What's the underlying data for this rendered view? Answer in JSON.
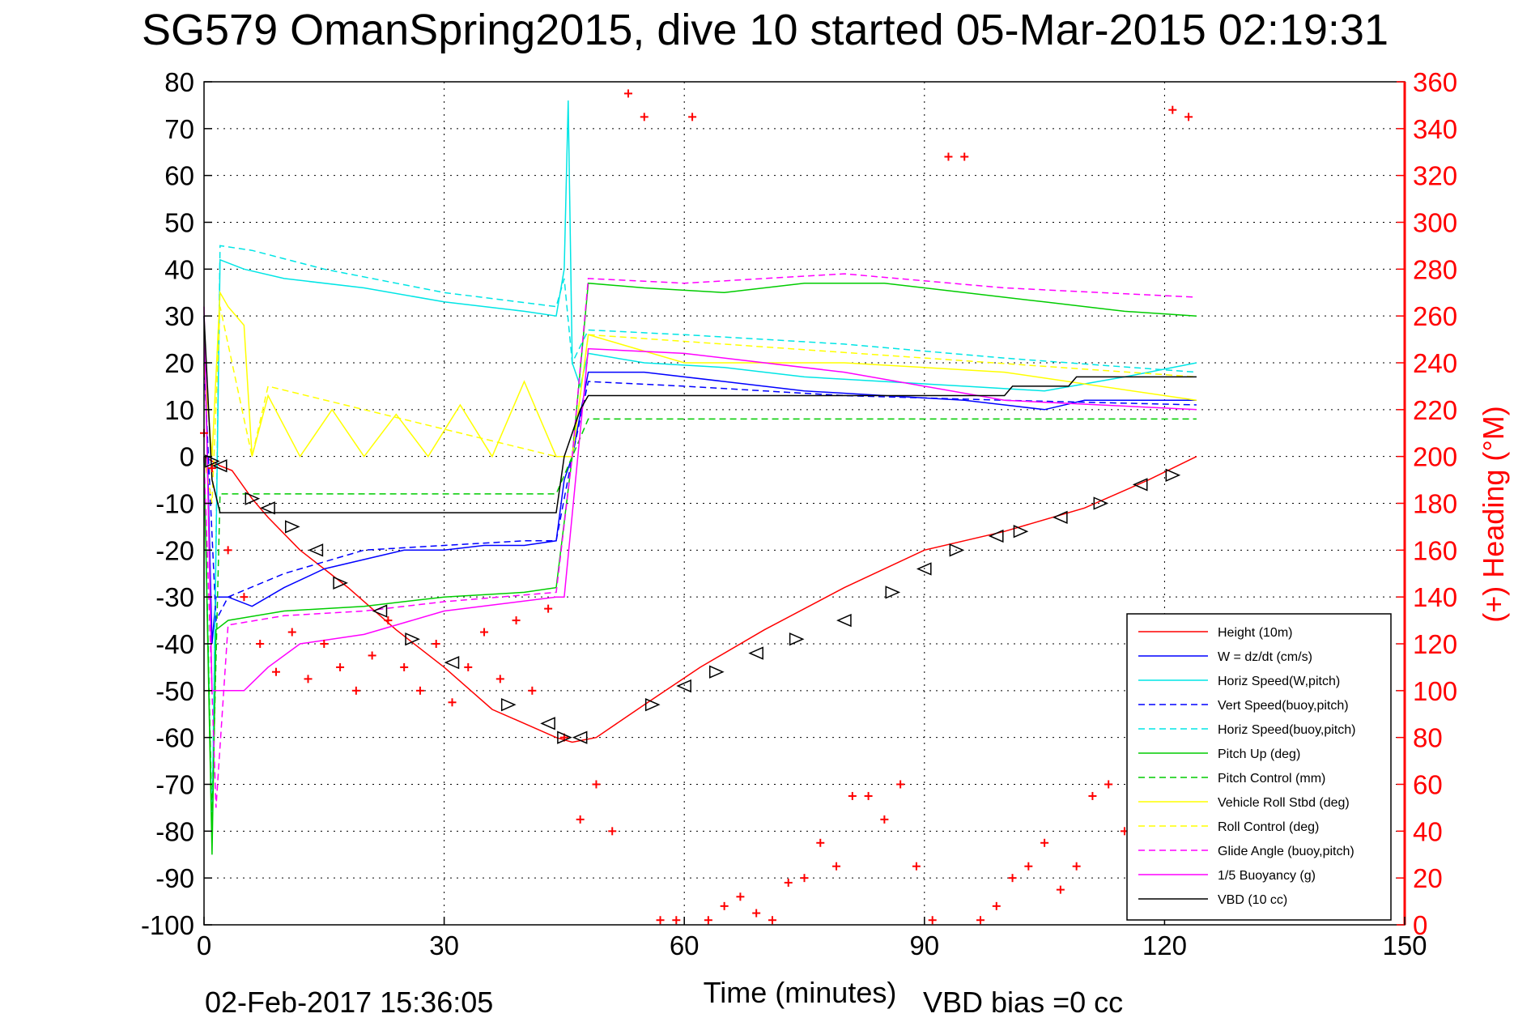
{
  "chart_data": {
    "type": "line",
    "title": "SG579 OmanSpring2015, dive 10 started 05-Mar-2015 02:19:31",
    "xlabel": "Time (minutes)",
    "ylabel": "",
    "ylabel_right": "(+) Heading (°M)",
    "footer_date": "02-Feb-2017 15:36:05",
    "footer_vbd": "VBD bias =0 cc",
    "xlim": [
      0,
      150
    ],
    "ylim": [
      -100,
      80
    ],
    "ylim_right": [
      0,
      360
    ],
    "x_ticks": [
      "0",
      "30",
      "60",
      "90",
      "120",
      "150"
    ],
    "y_ticks": [
      "80",
      "70",
      "60",
      "50",
      "40",
      "30",
      "20",
      "10",
      "0",
      "-10",
      "-20",
      "-30",
      "-40",
      "-50",
      "-60",
      "-70",
      "-80",
      "-90",
      "-100"
    ],
    "y_right_ticks": [
      "360",
      "340",
      "320",
      "300",
      "280",
      "260",
      "240",
      "220",
      "200",
      "180",
      "160",
      "140",
      "120",
      "100",
      "80",
      "60",
      "40",
      "20",
      "0"
    ],
    "grid": true,
    "legend_position": "lower-right",
    "colors": {
      "red": "#ff0000",
      "blue": "#0000ff",
      "cyan": "#00e5e5",
      "green": "#00cc00",
      "yellow": "#ffff00",
      "magenta": "#ff00ff",
      "black": "#000000"
    },
    "series": [
      {
        "name": "Height (10m)",
        "color": "#ff0000",
        "style": "solid",
        "x": [
          0,
          1,
          2,
          3.5,
          6,
          8,
          12,
          18,
          24,
          30,
          36,
          40,
          44,
          46,
          49,
          55,
          62,
          70,
          80,
          90,
          100,
          110,
          118,
          124
        ],
        "y": [
          0,
          -1,
          -2,
          -3,
          -9,
          -13,
          -20,
          -28,
          -37,
          -45,
          -54,
          -57,
          -60,
          -61,
          -60,
          -53,
          -45,
          -37,
          -28,
          -20,
          -16,
          -11,
          -5,
          0
        ]
      },
      {
        "name": "W = dz/dt (cm/s)",
        "color": "#0000ff",
        "style": "solid",
        "x": [
          0,
          1,
          1.5,
          3,
          6,
          10,
          15,
          20,
          25,
          30,
          35,
          40,
          44,
          45,
          46,
          48,
          55,
          65,
          75,
          85,
          95,
          100,
          105,
          110,
          115,
          120,
          124
        ],
        "y": [
          30,
          -40,
          -30,
          -30,
          -32,
          -28,
          -24,
          -22,
          -20,
          -20,
          -19,
          -19,
          -18,
          -5,
          0,
          18,
          18,
          16,
          14,
          13,
          12,
          11,
          10,
          12,
          12,
          12,
          12
        ]
      },
      {
        "name": "Horiz Speed(W,pitch)",
        "color": "#00e5e5",
        "style": "solid",
        "x": [
          0,
          1,
          2,
          5,
          10,
          20,
          30,
          40,
          44,
          45,
          45.5,
          46,
          47,
          48,
          55,
          65,
          75,
          85,
          95,
          105,
          115,
          124
        ],
        "y": [
          0,
          -80,
          42,
          40,
          38,
          36,
          33,
          31,
          30,
          40,
          76,
          20,
          15,
          22,
          20,
          19,
          17,
          16,
          15,
          14,
          17,
          20
        ]
      },
      {
        "name": "Vert Speed(buoy,pitch)",
        "color": "#0000ff",
        "style": "dashed",
        "x": [
          0,
          1.5,
          3,
          10,
          20,
          30,
          40,
          44,
          46,
          48,
          60,
          80,
          100,
          124
        ],
        "y": [
          20,
          -35,
          -30,
          -25,
          -20,
          -19,
          -18,
          -18,
          0,
          16,
          15,
          13,
          12,
          11
        ]
      },
      {
        "name": "Horiz Speed(buoy,pitch)",
        "color": "#00e5e5",
        "style": "dashed",
        "x": [
          0,
          1,
          2,
          6,
          15,
          30,
          44,
          45,
          46,
          48,
          60,
          80,
          100,
          124
        ],
        "y": [
          0,
          -80,
          45,
          44,
          40,
          35,
          32,
          38,
          20,
          27,
          26,
          24,
          21,
          18
        ]
      },
      {
        "name": "Pitch Up (deg)",
        "color": "#00cc00",
        "style": "solid",
        "x": [
          0,
          1,
          1.5,
          3,
          10,
          20,
          30,
          40,
          44,
          46,
          48,
          55,
          65,
          75,
          85,
          95,
          105,
          115,
          124
        ],
        "y": [
          0,
          -85,
          -37,
          -35,
          -33,
          -32,
          -30,
          -29,
          -28,
          0,
          37,
          36,
          35,
          37,
          37,
          35,
          33,
          31,
          30
        ]
      },
      {
        "name": "Pitch Control (mm)",
        "color": "#00cc00",
        "style": "dashed",
        "x": [
          0,
          1,
          2,
          44,
          46,
          48,
          124
        ],
        "y": [
          0,
          -78,
          -8,
          -8,
          0,
          8,
          8
        ]
      },
      {
        "name": "Vehicle Roll Stbd (deg)",
        "color": "#ffff00",
        "style": "solid",
        "x": [
          0,
          1,
          2,
          3,
          5,
          6,
          8,
          12,
          16,
          20,
          24,
          28,
          32,
          36,
          40,
          44,
          46,
          48,
          60,
          80,
          100,
          124
        ],
        "y": [
          20,
          0,
          35,
          32,
          28,
          0,
          13,
          0,
          10,
          0,
          9,
          0,
          11,
          0,
          16,
          0,
          0,
          26,
          20,
          20,
          18,
          12
        ]
      },
      {
        "name": "Roll Control (deg)",
        "color": "#ffff00",
        "style": "dashed",
        "x": [
          0,
          1,
          2,
          6,
          8,
          44,
          46,
          48,
          124
        ],
        "y": [
          0,
          -10,
          32,
          0,
          15,
          0,
          0,
          26,
          17
        ]
      },
      {
        "name": "Glide Angle (buoy,pitch)",
        "color": "#ff00ff",
        "style": "dashed",
        "x": [
          0,
          1.5,
          3,
          10,
          20,
          30,
          44,
          46,
          48,
          60,
          80,
          100,
          124
        ],
        "y": [
          0,
          -75,
          -36,
          -34,
          -33,
          -31,
          -29,
          0,
          38,
          37,
          39,
          36,
          34
        ]
      },
      {
        "name": "1/5 Buoyancy (g)",
        "color": "#ff00ff",
        "style": "solid",
        "x": [
          0,
          1,
          2,
          5,
          8,
          12,
          20,
          30,
          44,
          45,
          48,
          60,
          80,
          100,
          124
        ],
        "y": [
          32,
          -50,
          -50,
          -50,
          -45,
          -40,
          -38,
          -33,
          -30,
          -30,
          23,
          22,
          18,
          12,
          10
        ]
      },
      {
        "name": "VBD (10 cc)",
        "color": "#000000",
        "style": "solid",
        "x": [
          0,
          1,
          2,
          44,
          45,
          47,
          48,
          100,
          101,
          108,
          109,
          124
        ],
        "y": [
          30,
          -5,
          -12,
          -12,
          0,
          10,
          13,
          13,
          15,
          15,
          17,
          17
        ]
      },
      {
        "name": "Heading (°M)",
        "color": "#ff0000",
        "style": "markers-plus",
        "axis": "right",
        "x": [
          0,
          1,
          3,
          5,
          7,
          9,
          11,
          13,
          15,
          17,
          19,
          21,
          23,
          25,
          27,
          29,
          31,
          33,
          35,
          37,
          39,
          41,
          43,
          45,
          47,
          49,
          51,
          53,
          55,
          57,
          59,
          61,
          63,
          65,
          67,
          69,
          71,
          73,
          75,
          77,
          79,
          81,
          83,
          85,
          87,
          89,
          91,
          93,
          95,
          97,
          99,
          101,
          103,
          105,
          107,
          109,
          111,
          113,
          115,
          117,
          119,
          121,
          123
        ],
        "y": [
          210,
          195,
          160,
          140,
          120,
          108,
          125,
          105,
          120,
          110,
          100,
          115,
          130,
          110,
          100,
          120,
          95,
          110,
          125,
          105,
          130,
          100,
          135,
          80,
          45,
          60,
          40,
          355,
          345,
          2,
          2,
          345,
          2,
          8,
          12,
          5,
          2,
          18,
          20,
          35,
          25,
          55,
          55,
          45,
          60,
          25,
          2,
          328,
          328,
          2,
          8,
          20,
          25,
          35,
          15,
          25,
          55,
          60,
          40,
          60,
          65,
          348,
          345
        ]
      },
      {
        "name": "Markers (triangles)",
        "color": "#000000",
        "style": "markers-triangle",
        "x": [
          1,
          2,
          6,
          8,
          11,
          14,
          17,
          22,
          26,
          31,
          38,
          43,
          45,
          47,
          56,
          60,
          64,
          69,
          74,
          80,
          86,
          90,
          94,
          99,
          102,
          107,
          112,
          117,
          121
        ],
        "y": [
          -1,
          -2,
          -9,
          -11,
          -15,
          -20,
          -27,
          -33,
          -39,
          -44,
          -53,
          -57,
          -60,
          -60,
          -53,
          -49,
          -46,
          -42,
          -39,
          -35,
          -29,
          -24,
          -20,
          -17,
          -16,
          -13,
          -10,
          -6,
          -4
        ]
      }
    ]
  }
}
